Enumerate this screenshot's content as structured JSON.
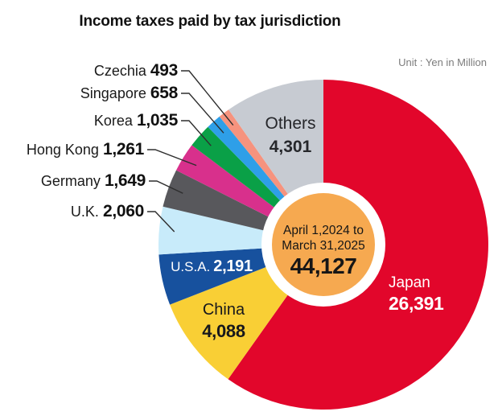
{
  "title": "Income taxes paid by tax jurisdiction",
  "unit_label": "Unit : Yen in Million",
  "center": {
    "period_line1": "April 1,2024 to",
    "period_line2": "March 31,2025",
    "total_display": "44,127",
    "circle_color": "#F6A950",
    "ring_color": "#FFFFFF"
  },
  "chart_data": {
    "type": "pie",
    "title": "Income taxes paid by tax jurisdiction",
    "unit": "Yen in Million",
    "period": "April 1,2024 to March 31,2025",
    "total": 44127,
    "total_display": "44,127",
    "direction": "clockwise",
    "start_angle_deg": 0,
    "donut_hole": true,
    "leader_line_color": "#2e2e2e",
    "slices": [
      {
        "label": "Japan",
        "value": 26391,
        "display": "26,391",
        "color": "#E2062B",
        "label_placement": "inside"
      },
      {
        "label": "China",
        "value": 4088,
        "display": "4,088",
        "color": "#F9CF35",
        "label_placement": "inside"
      },
      {
        "label": "U.S.A.",
        "value": 2191,
        "display": "2,191",
        "color": "#17519E",
        "label_placement": "inside"
      },
      {
        "label": "U.K.",
        "value": 2060,
        "display": "2,060",
        "color": "#C8EBFA",
        "label_placement": "callout"
      },
      {
        "label": "Germany",
        "value": 1649,
        "display": "1,649",
        "color": "#58585C",
        "label_placement": "callout"
      },
      {
        "label": "Hong Kong",
        "value": 1261,
        "display": "1,261",
        "color": "#D8308C",
        "label_placement": "callout"
      },
      {
        "label": "Korea",
        "value": 1035,
        "display": "1,035",
        "color": "#0AA047",
        "label_placement": "callout"
      },
      {
        "label": "Singapore",
        "value": 658,
        "display": "658",
        "color": "#2E9FE8",
        "label_placement": "callout"
      },
      {
        "label": "Czechia",
        "value": 493,
        "display": "493",
        "color": "#F6937E",
        "label_placement": "callout"
      },
      {
        "label": "Others",
        "value": 4301,
        "display": "4,301",
        "color": "#C7CBD2",
        "label_placement": "inside"
      }
    ]
  }
}
